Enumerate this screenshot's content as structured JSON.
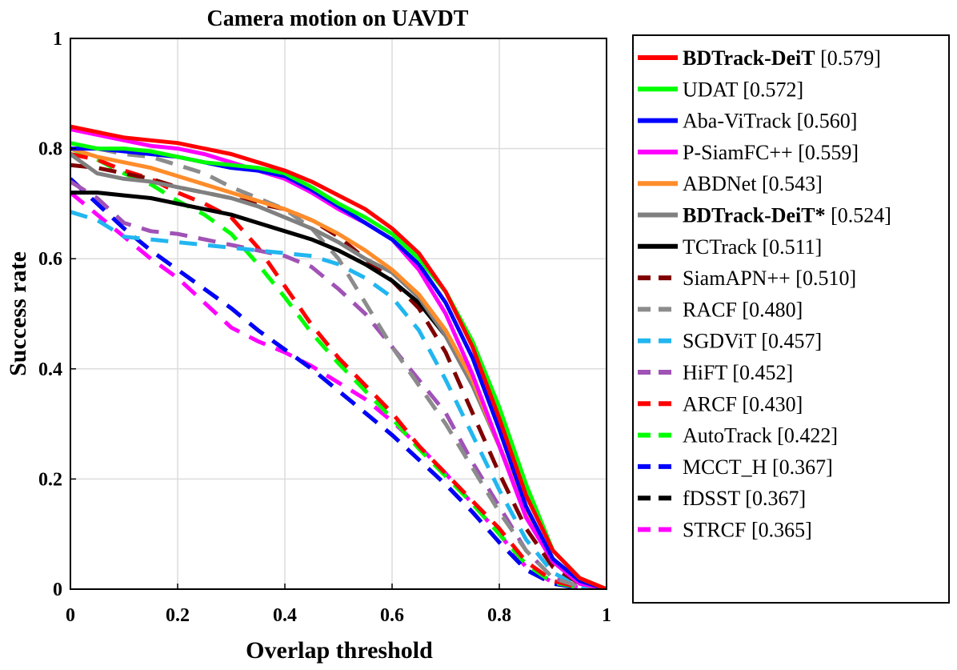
{
  "chart_data": {
    "type": "line",
    "title": "Camera motion on UAVDT",
    "xlabel": "Overlap threshold",
    "ylabel": "Success rate",
    "xlim": [
      0,
      1
    ],
    "ylim": [
      0,
      1
    ],
    "grid": true,
    "legend_position": "outside-right",
    "x_ticks": [
      "0",
      "0.2",
      "0.4",
      "0.6",
      "0.8",
      "1"
    ],
    "y_ticks": [
      "0",
      "0.2",
      "0.4",
      "0.6",
      "0.8",
      "1"
    ],
    "x": [
      0,
      0.05,
      0.1,
      0.15,
      0.2,
      0.25,
      0.3,
      0.35,
      0.4,
      0.45,
      0.5,
      0.55,
      0.6,
      0.65,
      0.7,
      0.75,
      0.8,
      0.85,
      0.9,
      0.95,
      1.0
    ],
    "series": [
      {
        "name": "BDTrack-DeiT",
        "score": "[0.579]",
        "bold": true,
        "color": "#ff0000",
        "dash": false,
        "values": [
          0.84,
          0.83,
          0.82,
          0.815,
          0.81,
          0.8,
          0.79,
          0.775,
          0.76,
          0.74,
          0.715,
          0.69,
          0.655,
          0.61,
          0.54,
          0.44,
          0.31,
          0.17,
          0.07,
          0.02,
          0.0
        ]
      },
      {
        "name": "UDAT",
        "score": "[0.572]",
        "bold": false,
        "color": "#00ff00",
        "dash": false,
        "values": [
          0.81,
          0.8,
          0.8,
          0.795,
          0.785,
          0.775,
          0.77,
          0.765,
          0.755,
          0.73,
          0.7,
          0.675,
          0.645,
          0.6,
          0.54,
          0.45,
          0.33,
          0.19,
          0.07,
          0.02,
          0.0
        ]
      },
      {
        "name": "Aba-ViTrack",
        "score": "[0.560]",
        "bold": false,
        "color": "#0000ff",
        "dash": false,
        "values": [
          0.8,
          0.8,
          0.795,
          0.79,
          0.785,
          0.775,
          0.765,
          0.76,
          0.75,
          0.725,
          0.695,
          0.665,
          0.635,
          0.59,
          0.52,
          0.42,
          0.29,
          0.15,
          0.055,
          0.015,
          0.0
        ]
      },
      {
        "name": "P-SiamFC++",
        "score": "[0.559]",
        "bold": false,
        "color": "#ff00ff",
        "dash": false,
        "values": [
          0.835,
          0.825,
          0.815,
          0.805,
          0.8,
          0.79,
          0.775,
          0.76,
          0.745,
          0.72,
          0.69,
          0.665,
          0.635,
          0.58,
          0.5,
          0.39,
          0.26,
          0.13,
          0.05,
          0.01,
          0.0
        ]
      },
      {
        "name": "ABDNet",
        "score": "[0.543]",
        "bold": false,
        "color": "#ff8c2a",
        "dash": false,
        "values": [
          0.8,
          0.785,
          0.775,
          0.765,
          0.75,
          0.735,
          0.72,
          0.705,
          0.69,
          0.67,
          0.645,
          0.615,
          0.58,
          0.535,
          0.47,
          0.38,
          0.26,
          0.14,
          0.05,
          0.01,
          0.0
        ]
      },
      {
        "name": "BDTrack-DeiT*",
        "score": "[0.524]",
        "bold": true,
        "color": "#808080",
        "dash": false,
        "values": [
          0.79,
          0.755,
          0.745,
          0.74,
          0.73,
          0.72,
          0.71,
          0.695,
          0.675,
          0.655,
          0.63,
          0.6,
          0.575,
          0.53,
          0.46,
          0.37,
          0.26,
          0.14,
          0.05,
          0.01,
          0.0
        ]
      },
      {
        "name": "TCTrack",
        "score": "[0.511]",
        "bold": false,
        "color": "#000000",
        "dash": false,
        "values": [
          0.72,
          0.72,
          0.715,
          0.71,
          0.7,
          0.69,
          0.68,
          0.665,
          0.65,
          0.635,
          0.615,
          0.59,
          0.56,
          0.52,
          0.46,
          0.37,
          0.26,
          0.14,
          0.05,
          0.01,
          0.0
        ]
      },
      {
        "name": "SiamAPN++",
        "score": "[0.510]",
        "bold": false,
        "color": "#800000",
        "dash": true,
        "values": [
          0.77,
          0.765,
          0.755,
          0.745,
          0.73,
          0.72,
          0.71,
          0.7,
          0.69,
          0.67,
          0.64,
          0.6,
          0.56,
          0.51,
          0.43,
          0.32,
          0.21,
          0.11,
          0.04,
          0.01,
          0.0
        ]
      },
      {
        "name": "RACF",
        "score": "[0.480]",
        "bold": false,
        "color": "#8c8c8c",
        "dash": true,
        "values": [
          0.8,
          0.8,
          0.79,
          0.785,
          0.77,
          0.755,
          0.73,
          0.71,
          0.69,
          0.655,
          0.6,
          0.52,
          0.44,
          0.37,
          0.3,
          0.22,
          0.14,
          0.07,
          0.02,
          0.005,
          0.0
        ]
      },
      {
        "name": "SGDViT",
        "score": "[0.457]",
        "bold": false,
        "color": "#21b6f0",
        "dash": true,
        "values": [
          0.685,
          0.67,
          0.64,
          0.635,
          0.63,
          0.625,
          0.62,
          0.615,
          0.61,
          0.605,
          0.59,
          0.565,
          0.53,
          0.47,
          0.38,
          0.28,
          0.18,
          0.09,
          0.03,
          0.005,
          0.0
        ]
      },
      {
        "name": "HiFT",
        "score": "[0.452]",
        "bold": false,
        "color": "#a052b6",
        "dash": true,
        "values": [
          0.74,
          0.71,
          0.665,
          0.65,
          0.645,
          0.635,
          0.625,
          0.615,
          0.605,
          0.585,
          0.545,
          0.5,
          0.44,
          0.38,
          0.32,
          0.23,
          0.15,
          0.07,
          0.02,
          0.005,
          0.0
        ]
      },
      {
        "name": "ARCF",
        "score": "[0.430]",
        "bold": false,
        "color": "#ff0000",
        "dash": true,
        "values": [
          0.79,
          0.78,
          0.76,
          0.745,
          0.72,
          0.7,
          0.675,
          0.62,
          0.55,
          0.48,
          0.42,
          0.37,
          0.32,
          0.26,
          0.21,
          0.16,
          0.11,
          0.05,
          0.015,
          0.003,
          0.0
        ]
      },
      {
        "name": "AutoTrack",
        "score": "[0.422]",
        "bold": false,
        "color": "#00ff00",
        "dash": true,
        "values": [
          0.8,
          0.78,
          0.755,
          0.735,
          0.705,
          0.68,
          0.645,
          0.59,
          0.53,
          0.465,
          0.41,
          0.36,
          0.31,
          0.255,
          0.205,
          0.155,
          0.1,
          0.045,
          0.012,
          0.003,
          0.0
        ]
      },
      {
        "name": "MCCT_H",
        "score": "[0.367]",
        "bold": false,
        "color": "#0000ff",
        "dash": true,
        "values": [
          0.745,
          0.7,
          0.655,
          0.615,
          0.58,
          0.545,
          0.51,
          0.47,
          0.435,
          0.4,
          0.36,
          0.32,
          0.28,
          0.235,
          0.19,
          0.14,
          0.085,
          0.035,
          0.01,
          0.002,
          0.0
        ]
      },
      {
        "name": "fDSST",
        "score": "[0.367]",
        "bold": false,
        "color": "#000000",
        "dash": true,
        "values": [
          0.745,
          0.7,
          0.655,
          0.615,
          0.58,
          0.545,
          0.51,
          0.47,
          0.435,
          0.4,
          0.36,
          0.32,
          0.28,
          0.235,
          0.19,
          0.14,
          0.085,
          0.035,
          0.01,
          0.002,
          0.0
        ]
      },
      {
        "name": "STRCF",
        "score": "[0.365]",
        "bold": false,
        "color": "#ff00ff",
        "dash": true,
        "values": [
          0.72,
          0.68,
          0.64,
          0.6,
          0.565,
          0.52,
          0.475,
          0.45,
          0.43,
          0.405,
          0.375,
          0.345,
          0.305,
          0.26,
          0.21,
          0.155,
          0.1,
          0.04,
          0.012,
          0.003,
          0.0
        ]
      }
    ]
  }
}
